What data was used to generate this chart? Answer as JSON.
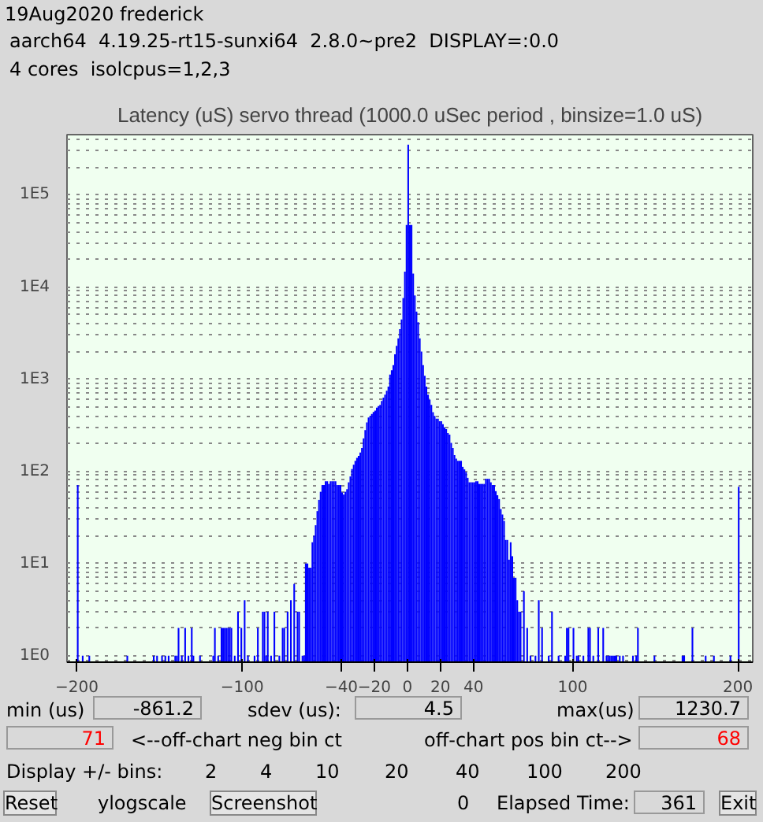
{
  "chart_data": {
    "type": "histogram",
    "title": "Latency (uS) servo thread (1000.0 uSec period , binsize=1.0 uS)",
    "bins": [
      -200,
      -199,
      -198,
      -197,
      -196,
      -195,
      -194,
      -193,
      -192,
      -191,
      -190,
      -189,
      -188,
      -187,
      -186,
      -185,
      -184,
      -183,
      -182,
      -181,
      -180,
      -179,
      -178,
      -177,
      -176,
      -175,
      -174,
      -173,
      -172,
      -171,
      -170,
      -169,
      -168,
      -167,
      -166,
      -165,
      -164,
      -163,
      -162,
      -161,
      -160,
      -159,
      -158,
      -157,
      -156,
      -155,
      -154,
      -153,
      -152,
      -151,
      -150,
      -149,
      -148,
      -147,
      -146,
      -145,
      -144,
      -143,
      -142,
      -141,
      -140,
      -139,
      -138,
      -137,
      -136,
      -135,
      -134,
      -133,
      -132,
      -131,
      -130,
      -129,
      -128,
      -127,
      -126,
      -125,
      -124,
      -123,
      -122,
      -121,
      -120,
      -119,
      -118,
      -117,
      -116,
      -115,
      -114,
      -113,
      -112,
      -111,
      -110,
      -109,
      -108,
      -107,
      -106,
      -105,
      -104,
      -103,
      -102,
      -101,
      -100,
      -99,
      -98,
      -97,
      -96,
      -95,
      -94,
      -93,
      -92,
      -91,
      -90,
      -89,
      -88,
      -87,
      -86,
      -85,
      -84,
      -83,
      -82,
      -81,
      -80,
      -79,
      -78,
      -77,
      -76,
      -75,
      -74,
      -73,
      -72,
      -71,
      -70,
      -69,
      -68,
      -67,
      -66,
      -65,
      -64,
      -63,
      -62,
      -61,
      -60,
      -59,
      -58,
      -57,
      -56,
      -55,
      -54,
      -53,
      -52,
      -51,
      -50,
      -49,
      -48,
      -47,
      -46,
      -45,
      -44,
      -43,
      -42,
      -41,
      -40,
      -39,
      -38,
      -37,
      -36,
      -35,
      -34,
      -33,
      -32,
      -31,
      -30,
      -29,
      -28,
      -27,
      -26,
      -25,
      -24,
      -23,
      -22,
      -21,
      -20,
      -19,
      -18,
      -17,
      -16,
      -15,
      -14,
      -13,
      -12,
      -11,
      -10,
      -9,
      -8,
      -7,
      -6,
      -5,
      -4,
      -3,
      -2,
      -1,
      0,
      1,
      2,
      3,
      4,
      5,
      6,
      7,
      8,
      9,
      10,
      11,
      12,
      13,
      14,
      15,
      16,
      17,
      18,
      19,
      20,
      21,
      22,
      23,
      24,
      25,
      26,
      27,
      28,
      29,
      30,
      31,
      32,
      33,
      34,
      35,
      36,
      37,
      38,
      39,
      40,
      41,
      42,
      43,
      44,
      45,
      46,
      47,
      48,
      49,
      50,
      51,
      52,
      53,
      54,
      55,
      56,
      57,
      58,
      59,
      60,
      61,
      62,
      63,
      64,
      65,
      66,
      67,
      68,
      69,
      70,
      71,
      72,
      73,
      74,
      75,
      76,
      77,
      78,
      79,
      80,
      81,
      82,
      83,
      84,
      85,
      86,
      87,
      88,
      89,
      90,
      91,
      92,
      93,
      94,
      95,
      96,
      97,
      98,
      99,
      100,
      101,
      102,
      103,
      104,
      105,
      106,
      107,
      108,
      109,
      110,
      111,
      112,
      113,
      114,
      115,
      116,
      117,
      118,
      119,
      120,
      121,
      122,
      123,
      124,
      125,
      126,
      127,
      128,
      129,
      130,
      131,
      132,
      133,
      134,
      135,
      136,
      137,
      138,
      139,
      140,
      141,
      142,
      143,
      144,
      145,
      146,
      147,
      148,
      149,
      150,
      151,
      152,
      153,
      154,
      155,
      156,
      157,
      158,
      159,
      160,
      161,
      162,
      163,
      164,
      165,
      166,
      167,
      168,
      169,
      170,
      171,
      172,
      173,
      174,
      175,
      176,
      177,
      178,
      179,
      180,
      181,
      182,
      183,
      184,
      185,
      186,
      187,
      188,
      189,
      190,
      191,
      192,
      193,
      194,
      195,
      196,
      197,
      198,
      199,
      200,
      201
    ],
    "values": [
      71,
      null,
      null,
      1,
      null,
      null,
      null,
      1,
      null,
      null,
      null,
      null,
      null,
      null,
      null,
      null,
      null,
      null,
      null,
      null,
      null,
      null,
      null,
      null,
      null,
      null,
      null,
      null,
      null,
      null,
      1,
      null,
      null,
      null,
      null,
      null,
      null,
      null,
      null,
      null,
      null,
      null,
      null,
      null,
      null,
      null,
      1,
      null,
      1,
      null,
      null,
      1,
      null,
      1,
      null,
      1,
      null,
      null,
      null,
      1,
      1,
      2,
      null,
      1,
      null,
      2,
      null,
      1,
      null,
      2,
      1,
      null,
      null,
      null,
      1,
      null,
      null,
      null,
      null,
      null,
      null,
      null,
      1,
      2,
      null,
      1,
      null,
      2,
      2,
      2,
      2,
      2,
      2,
      2,
      null,
      1,
      null,
      3,
      null,
      2,
      null,
      4,
      null,
      1,
      null,
      null,
      null,
      1,
      null,
      2,
      null,
      null,
      3,
      3,
      1,
      3,
      null,
      1,
      null,
      3,
      null,
      null,
      1,
      null,
      2,
      2,
      null,
      3,
      null,
      4,
      null,
      6,
      null,
      3,
      3,
      null,
      1,
      1,
      10,
      10,
      9,
      9,
      17,
      20,
      26,
      37,
      49,
      60,
      71,
      71,
      78,
      78,
      73,
      78,
      78,
      78,
      78,
      71,
      71,
      71,
      59,
      56,
      60,
      64,
      76,
      88,
      106,
      118,
      130,
      140,
      147,
      160,
      179,
      228,
      280,
      340,
      383,
      400,
      420,
      440,
      456,
      490,
      510,
      525,
      580,
      630,
      680,
      750,
      830,
      1120,
      1250,
      1420,
      1860,
      2300,
      2770,
      3500,
      4450,
      7600,
      14700,
      47000,
      350000,
      47000,
      47000,
      14000,
      8100,
      5400,
      4150,
      2770,
      1990,
      1420,
      1090,
      830,
      680,
      600,
      525,
      438,
      400,
      372,
      372,
      350,
      350,
      325,
      300,
      287,
      260,
      250,
      204,
      179,
      150,
      137,
      130,
      130,
      130,
      112,
      105,
      98,
      85,
      76,
      76,
      76,
      76,
      78,
      78,
      73,
      73,
      73,
      73,
      83,
      83,
      83,
      76,
      71,
      71,
      61,
      55,
      50,
      39,
      34,
      29,
      18,
      18,
      11,
      17,
      12,
      7,
      7,
      4,
      3,
      3,
      null,
      5,
      null,
      2,
      null,
      1,
      null,
      null,
      1,
      null,
      4,
      null,
      2,
      null,
      null,
      null,
      1,
      null,
      3,
      null,
      null,
      null,
      1,
      null,
      null,
      null,
      1,
      2,
      2,
      null,
      null,
      2,
      null,
      1,
      1,
      null,
      null,
      1,
      null,
      null,
      2,
      2,
      null,
      1,
      null,
      null,
      2,
      null,
      null,
      2,
      null,
      1,
      1,
      1,
      1,
      1,
      1,
      1,
      null,
      1,
      null,
      1,
      null,
      null,
      null,
      null,
      null,
      1,
      null,
      1,
      2,
      null,
      null,
      null,
      null,
      null,
      null,
      null,
      null,
      null,
      1,
      null,
      null,
      null,
      null,
      null,
      null,
      null,
      null,
      null,
      null,
      null,
      null,
      null,
      null,
      null,
      null,
      1,
      1,
      null,
      null,
      null,
      null,
      2,
      null,
      null,
      null,
      null,
      null,
      null,
      null,
      1,
      null,
      null,
      null,
      null,
      1,
      null,
      null,
      null,
      null,
      null,
      null,
      null,
      null,
      null,
      1,
      null,
      null,
      null,
      null,
      68
    ],
    "color": "#0000ff",
    "xlim": [
      -206,
      209
    ],
    "xticks": [
      -200,
      -100,
      -40,
      -20,
      0,
      20,
      40,
      100,
      200
    ],
    "ylim": [
      0.85,
      450000
    ],
    "yticks": [
      {
        "value": 1,
        "label": "1E0"
      },
      {
        "value": 10,
        "label": "1E1"
      },
      {
        "value": 100,
        "label": "1E2"
      },
      {
        "value": 1000,
        "label": "1E3"
      },
      {
        "value": 10000,
        "label": "1E4"
      },
      {
        "value": 100000,
        "label": "1E5"
      }
    ],
    "log": true,
    "grid": "y",
    "annotations": [
      "19Aug2020 frederick",
      "aarch64  4.19.25-rt15-sunxi64  2.8.0~pre2  DISPLAY=:0.0",
      "4 cores  isolcpus=1,2,3",
      "min (us)",
      "-861.2",
      "sdev (us):",
      "4.5",
      "max(us)",
      "1230.7",
      "71",
      "<--off-chart neg bin ct",
      "off-chart pos bin ct-->",
      "68",
      "Display +/- bins:",
      "2",
      "4",
      "10",
      "20",
      "40",
      "100",
      "200",
      "Reset",
      "ylogscale",
      "Screenshot",
      "0",
      "Elapsed Time:",
      "361",
      "Exit"
    ]
  }
}
